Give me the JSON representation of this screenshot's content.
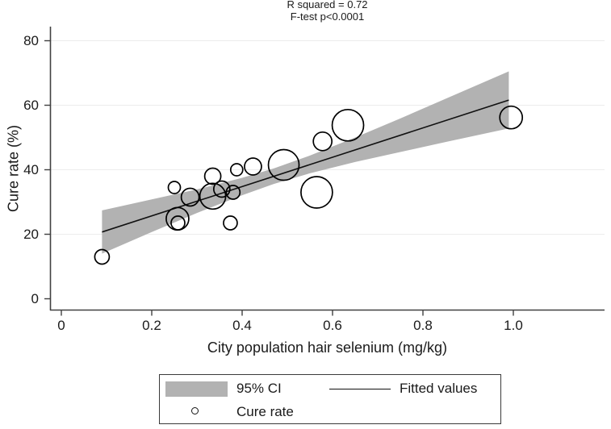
{
  "title": {
    "line1": "R squared = 0.72",
    "line2": "F-test p<0.0001"
  },
  "axes": {
    "x_label": "City population hair selenium (mg/kg)",
    "y_label": "Cure rate (%)"
  },
  "legend": {
    "ci_label": "95% CI",
    "fitted_label": "Fitted values",
    "cure_label": "Cure rate"
  },
  "colors": {
    "band": "#b2b2b2",
    "fit_line": "#111111",
    "marker_stroke": "#000000",
    "grid": "#ececec",
    "axis": "#404040",
    "text": "#1a1a1a"
  },
  "chart_data": {
    "type": "scatter",
    "title": "R squared = 0.72",
    "subtitle": "F-test p<0.0001",
    "xlabel": "City population hair selenium (mg/kg)",
    "ylabel": "Cure rate (%)",
    "xlim": [
      -0.025,
      1.2
    ],
    "ylim": [
      -3.5,
      84.5
    ],
    "x_tick_values": [
      0,
      0.2,
      0.4,
      0.6,
      0.8,
      1.0
    ],
    "x_tick_labels": [
      "0",
      "0.2",
      "0.4",
      "0.6",
      "0.8",
      "1.0"
    ],
    "y_tick_values": [
      0,
      20,
      40,
      60,
      80
    ],
    "y_tick_labels": [
      "0",
      "20",
      "40",
      "60",
      "80"
    ],
    "grid": {
      "horizontal_at": [
        20,
        40,
        60,
        80
      ]
    },
    "legend_position": "bottom",
    "stats": {
      "r_squared": 0.72,
      "f_test": "p<0.0001"
    },
    "series": [
      {
        "name": "Cure rate",
        "type": "bubble",
        "points": [
          {
            "x": 0.09,
            "y": 13.0,
            "r": 9
          },
          {
            "x": 0.25,
            "y": 34.5,
            "r": 7.5
          },
          {
            "x": 0.257,
            "y": 24.8,
            "r": 14
          },
          {
            "x": 0.258,
            "y": 23.5,
            "r": 8.5
          },
          {
            "x": 0.285,
            "y": 31.5,
            "r": 11
          },
          {
            "x": 0.335,
            "y": 38.0,
            "r": 10
          },
          {
            "x": 0.335,
            "y": 31.8,
            "r": 16
          },
          {
            "x": 0.355,
            "y": 34.0,
            "r": 10
          },
          {
            "x": 0.38,
            "y": 33.0,
            "r": 8.5
          },
          {
            "x": 0.374,
            "y": 23.5,
            "r": 8.5
          },
          {
            "x": 0.388,
            "y": 40.0,
            "r": 7.5
          },
          {
            "x": 0.424,
            "y": 41.0,
            "r": 10.5
          },
          {
            "x": 0.492,
            "y": 41.5,
            "r": 19
          },
          {
            "x": 0.565,
            "y": 33.0,
            "r": 19.5
          },
          {
            "x": 0.578,
            "y": 48.8,
            "r": 11.5
          },
          {
            "x": 0.634,
            "y": 53.8,
            "r": 19.5
          },
          {
            "x": 0.995,
            "y": 56.2,
            "r": 14
          }
        ]
      },
      {
        "name": "Fitted values",
        "type": "line",
        "points": [
          {
            "x": 0.09,
            "y": 20.7
          },
          {
            "x": 0.99,
            "y": 61.6
          }
        ]
      },
      {
        "name": "95% CI",
        "type": "band",
        "x": [
          0.09,
          0.2,
          0.3,
          0.4,
          0.47,
          0.55,
          0.65,
          0.75,
          0.85,
          0.99
        ],
        "upper": [
          27.4,
          30.8,
          33.9,
          37.5,
          40.4,
          44.4,
          50.0,
          55.9,
          62.0,
          70.5
        ],
        "lower": [
          14.0,
          20.7,
          26.6,
          32.1,
          35.6,
          38.9,
          42.4,
          45.5,
          48.6,
          52.8
        ]
      }
    ]
  }
}
